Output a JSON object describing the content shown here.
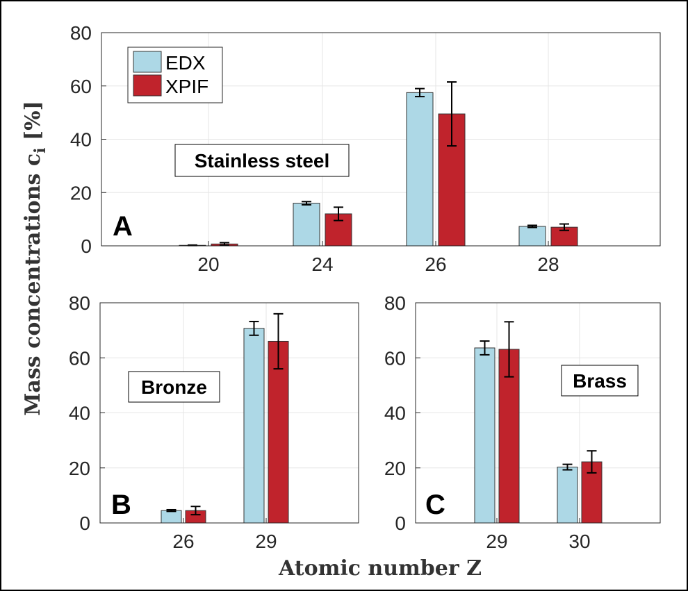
{
  "figure": {
    "ylabel": "Mass concentrations c",
    "ylabel_sub": "i",
    "ylabel_unit": " [%]",
    "xlabel": "Atomic number Z"
  },
  "legend": {
    "entries": [
      {
        "label": "EDX",
        "color": "#add8e6"
      },
      {
        "label": "XPIF",
        "color": "#c0232c"
      }
    ]
  },
  "chart_data": [
    {
      "type": "bar",
      "panel_letter": "A",
      "title": "Stainless steel",
      "categories": [
        "20",
        "24",
        "26",
        "28"
      ],
      "ylim": [
        0,
        80
      ],
      "yticks": [
        0,
        20,
        40,
        60,
        80
      ],
      "grid": true,
      "legend": "top-left",
      "series": [
        {
          "name": "EDX",
          "color": "#add8e6",
          "values": [
            0.2,
            16,
            57.5,
            7.3
          ],
          "err_low": [
            0.1,
            0.6,
            1.5,
            0.4
          ],
          "err_high": [
            0.1,
            0.6,
            1.5,
            0.4
          ]
        },
        {
          "name": "XPIF",
          "color": "#c0232c",
          "values": [
            0.7,
            12,
            49.5,
            7
          ],
          "err_low": [
            0.5,
            2.5,
            12,
            1.2
          ],
          "err_high": [
            0.5,
            2.5,
            12,
            1.2
          ]
        }
      ]
    },
    {
      "type": "bar",
      "panel_letter": "B",
      "title": "Bronze",
      "categories": [
        "26",
        "29"
      ],
      "ylim": [
        0,
        80
      ],
      "yticks": [
        0,
        20,
        40,
        60,
        80
      ],
      "grid": true,
      "series": [
        {
          "name": "EDX",
          "color": "#add8e6",
          "values": [
            4.5,
            70.7
          ],
          "err_low": [
            0.3,
            2.5
          ],
          "err_high": [
            0.3,
            2.5
          ]
        },
        {
          "name": "XPIF",
          "color": "#c0232c",
          "values": [
            4.5,
            66
          ],
          "err_low": [
            1.5,
            10
          ],
          "err_high": [
            1.5,
            10
          ]
        }
      ]
    },
    {
      "type": "bar",
      "panel_letter": "C",
      "title": "Brass",
      "categories": [
        "29",
        "30"
      ],
      "ylim": [
        0,
        80
      ],
      "yticks": [
        0,
        20,
        40,
        60,
        80
      ],
      "grid": true,
      "series": [
        {
          "name": "EDX",
          "color": "#add8e6",
          "values": [
            63.6,
            20.3
          ],
          "err_low": [
            2.5,
            1
          ],
          "err_high": [
            2.5,
            1
          ]
        },
        {
          "name": "XPIF",
          "color": "#c0232c",
          "values": [
            63.1,
            22.2
          ],
          "err_low": [
            10,
            4
          ],
          "err_high": [
            10,
            4
          ]
        }
      ]
    }
  ]
}
